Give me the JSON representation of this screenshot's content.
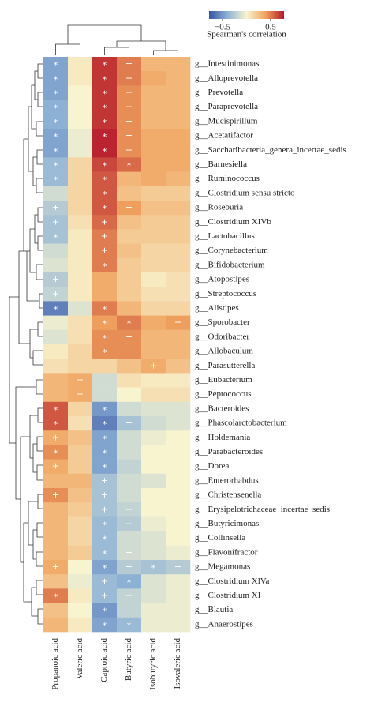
{
  "chart_data": {
    "type": "heatmap",
    "colorbar_label": "Spearman's correlation",
    "zlim": [
      -0.78,
      0.78
    ],
    "zticks": [
      {
        "value": -0.5,
        "label": "−0.5"
      },
      0.5
    ],
    "colormap": [
      "#3753a4",
      "#8fb3d6",
      "#f8f4cf",
      "#f0a35e",
      "#b5182b"
    ],
    "x_categories": [
      "Propanoic acid",
      "Valeric acid",
      "Caproic acid",
      "Butyric acid",
      "Isobutyric acid",
      "Isovaleric acid"
    ],
    "y_categories": [
      "g__Intestinimonas",
      "g__Alloprevotella",
      "g__Prevotella",
      "g__Paraprevotella",
      "g__Mucispirillum",
      "g__Acetatifactor",
      "g__Saccharibacteria_genera_incertae_sedis",
      "g__Barnesiella",
      "g__Ruminococcus",
      "g__Clostridium sensu stricto",
      "g__Roseburia",
      "g__Clostridium XIVb",
      "g__Lactobacillus",
      "g__Corynebacterium",
      "g__Bifidobacterium",
      "g__Atopostipes",
      "g__Streptococcus",
      "g__Alistipes",
      "g__Sporobacter",
      "g__Odoribacter",
      "g__Allobaculum",
      "g__Parasutterella",
      "g__Eubacterium",
      "g__Peptococcus",
      "g__Bacteroides",
      "g__Phascolarctobacterium",
      "g__Holdemania",
      "g__Parabacteroides",
      "g__Dorea",
      "g__Enterorhabdus",
      "g__Christensenella",
      "g__Erysipelotrichaceae_incertae_sedis",
      "g__Butyricimonas",
      "g__Collinsella",
      "g__Flavonifractor",
      "g__Megamonas",
      "g__Clostridium XlVa",
      "g__Clostridium XI",
      "g__Blautia",
      "g__Anaerostipes"
    ],
    "values": [
      [
        -0.45,
        0.05,
        0.7,
        0.5,
        0.3,
        0.3
      ],
      [
        -0.45,
        0.05,
        0.7,
        0.5,
        0.35,
        0.3
      ],
      [
        -0.45,
        0.0,
        0.7,
        0.45,
        0.3,
        0.3
      ],
      [
        -0.4,
        0.0,
        0.7,
        0.45,
        0.3,
        0.3
      ],
      [
        -0.4,
        0.0,
        0.7,
        0.45,
        0.3,
        0.3
      ],
      [
        -0.45,
        -0.05,
        0.75,
        0.45,
        0.35,
        0.35
      ],
      [
        -0.45,
        -0.05,
        0.75,
        0.45,
        0.35,
        0.35
      ],
      [
        -0.35,
        0.15,
        0.65,
        0.55,
        0.35,
        0.35
      ],
      [
        -0.35,
        0.15,
        0.6,
        0.3,
        0.35,
        0.3
      ],
      [
        -0.15,
        0.15,
        0.6,
        0.25,
        0.2,
        0.2
      ],
      [
        -0.25,
        0.15,
        0.6,
        0.4,
        0.25,
        0.25
      ],
      [
        -0.3,
        0.1,
        0.55,
        0.25,
        0.2,
        0.2
      ],
      [
        -0.3,
        0.05,
        0.5,
        0.2,
        0.2,
        0.2
      ],
      [
        -0.15,
        0.05,
        0.5,
        0.25,
        0.15,
        0.15
      ],
      [
        -0.1,
        0.05,
        0.5,
        0.2,
        0.15,
        0.15
      ],
      [
        -0.25,
        0.05,
        0.35,
        0.2,
        0.05,
        0.1
      ],
      [
        -0.2,
        0.05,
        0.35,
        0.2,
        0.1,
        0.1
      ],
      [
        -0.6,
        -0.1,
        0.5,
        0.3,
        0.15,
        0.15
      ],
      [
        -0.05,
        0.1,
        0.4,
        0.5,
        0.35,
        0.4
      ],
      [
        -0.1,
        0.1,
        0.45,
        0.45,
        0.3,
        0.3
      ],
      [
        0.05,
        0.15,
        0.45,
        0.45,
        0.3,
        0.3
      ],
      [
        0.1,
        0.15,
        0.15,
        0.25,
        0.35,
        0.25
      ],
      [
        0.3,
        0.35,
        -0.15,
        0.1,
        0.05,
        0.05
      ],
      [
        0.3,
        0.35,
        -0.15,
        0.0,
        0.1,
        0.1
      ],
      [
        0.6,
        0.15,
        -0.5,
        -0.15,
        -0.1,
        -0.1
      ],
      [
        0.6,
        0.1,
        -0.6,
        -0.3,
        -0.15,
        -0.1
      ],
      [
        0.35,
        0.25,
        -0.45,
        -0.15,
        -0.05,
        0.0
      ],
      [
        0.45,
        0.2,
        -0.45,
        -0.15,
        0.0,
        0.0
      ],
      [
        0.35,
        0.2,
        -0.45,
        -0.2,
        0.0,
        0.0
      ],
      [
        0.3,
        0.3,
        -0.3,
        -0.15,
        -0.1,
        0.0
      ],
      [
        0.45,
        0.25,
        -0.3,
        -0.15,
        0.0,
        0.0
      ],
      [
        0.3,
        0.2,
        -0.3,
        -0.2,
        0.0,
        0.0
      ],
      [
        0.3,
        0.15,
        -0.35,
        -0.25,
        -0.05,
        0.0
      ],
      [
        0.3,
        0.15,
        -0.35,
        -0.15,
        -0.1,
        0.0
      ],
      [
        0.3,
        0.2,
        -0.35,
        -0.15,
        -0.1,
        -0.05
      ],
      [
        0.35,
        0.0,
        -0.45,
        -0.25,
        -0.3,
        -0.25
      ],
      [
        0.25,
        -0.05,
        -0.35,
        -0.4,
        -0.1,
        -0.05
      ],
      [
        0.5,
        0.05,
        -0.35,
        -0.2,
        -0.1,
        -0.05
      ],
      [
        0.25,
        0.0,
        -0.5,
        -0.2,
        -0.05,
        -0.05
      ],
      [
        0.3,
        0.05,
        -0.45,
        -0.35,
        -0.05,
        -0.05
      ]
    ],
    "annotations": [
      [
        "*",
        null,
        "*",
        "+",
        null,
        null
      ],
      [
        "*",
        null,
        "*",
        "+",
        null,
        null
      ],
      [
        "*",
        null,
        "*",
        "+",
        null,
        null
      ],
      [
        "*",
        null,
        "*",
        "+",
        null,
        null
      ],
      [
        "*",
        null,
        "*",
        "+",
        null,
        null
      ],
      [
        "*",
        null,
        "*",
        "+",
        null,
        null
      ],
      [
        "*",
        null,
        "*",
        "+",
        null,
        null
      ],
      [
        "*",
        null,
        "*",
        "*",
        null,
        null
      ],
      [
        "*",
        null,
        "*",
        null,
        null,
        null
      ],
      [
        null,
        null,
        "*",
        null,
        null,
        null
      ],
      [
        "+",
        null,
        "*",
        "+",
        null,
        null
      ],
      [
        "+",
        null,
        "+",
        null,
        null,
        null
      ],
      [
        "*",
        null,
        "+",
        null,
        null,
        null
      ],
      [
        null,
        null,
        "+",
        null,
        null,
        null
      ],
      [
        null,
        null,
        "*",
        null,
        null,
        null
      ],
      [
        "+",
        null,
        null,
        null,
        null,
        null
      ],
      [
        "+",
        null,
        null,
        null,
        null,
        null
      ],
      [
        "*",
        null,
        "*",
        null,
        null,
        null
      ],
      [
        null,
        null,
        "*",
        "*",
        null,
        "+"
      ],
      [
        null,
        null,
        "*",
        "+",
        null,
        null
      ],
      [
        null,
        null,
        "*",
        "+",
        null,
        null
      ],
      [
        null,
        null,
        null,
        null,
        "+",
        null
      ],
      [
        null,
        "+",
        null,
        null,
        null,
        null
      ],
      [
        null,
        "+",
        null,
        null,
        null,
        null
      ],
      [
        "*",
        null,
        "*",
        null,
        null,
        null
      ],
      [
        "*",
        null,
        "*",
        "+",
        null,
        null
      ],
      [
        "+",
        null,
        "*",
        null,
        null,
        null
      ],
      [
        "*",
        null,
        "*",
        null,
        null,
        null
      ],
      [
        "+",
        null,
        "*",
        null,
        null,
        null
      ],
      [
        null,
        null,
        "+",
        null,
        null,
        null
      ],
      [
        "+",
        null,
        "+",
        null,
        null,
        null
      ],
      [
        null,
        null,
        "+",
        "+",
        null,
        null
      ],
      [
        null,
        null,
        "*",
        "+",
        null,
        null
      ],
      [
        null,
        null,
        "*",
        null,
        null,
        null
      ],
      [
        null,
        null,
        "*",
        "+",
        null,
        null
      ],
      [
        "+",
        null,
        "*",
        "+",
        "*",
        "+"
      ],
      [
        null,
        null,
        "+",
        "*",
        null,
        null
      ],
      [
        "*",
        null,
        "+",
        "+",
        null,
        null
      ],
      [
        null,
        null,
        "*",
        null,
        null,
        null
      ],
      [
        null,
        null,
        "*",
        "*",
        null,
        null
      ]
    ]
  }
}
